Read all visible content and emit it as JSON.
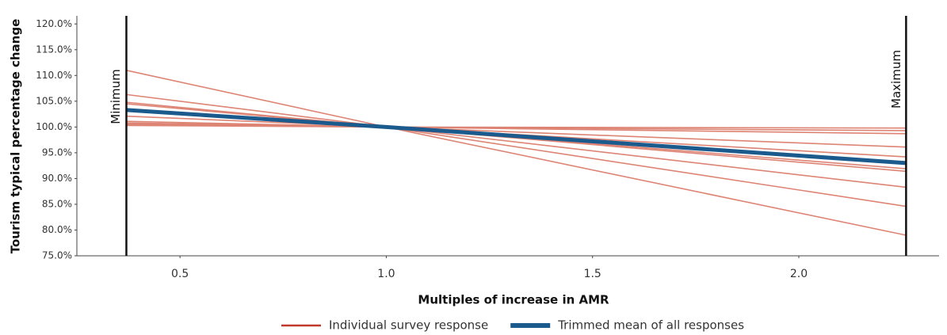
{
  "chart_data": {
    "type": "line",
    "y_label": "Tourism typical percentage change",
    "x_label": "Multiples of increase in AMR",
    "x": [
      0.37,
      1.0,
      2.26
    ],
    "xlim": [
      0.25,
      2.34
    ],
    "xticks": [
      0.5,
      {
        "value": 1,
        "label": "1.0"
      },
      1.5,
      {
        "value": 2,
        "label": "2.0"
      }
    ],
    "ylim": [
      75,
      120.5
    ],
    "yticks": [
      {
        "value": 75,
        "label": "75.0%"
      },
      {
        "value": 80,
        "label": "80.0%"
      },
      {
        "value": 85,
        "label": "85.0%"
      },
      {
        "value": 90,
        "label": "90.0%"
      },
      {
        "value": 95,
        "label": "95.0%"
      },
      {
        "value": 100,
        "label": "100.0%"
      },
      {
        "value": 105,
        "label": "105.0%"
      },
      {
        "value": 110,
        "label": "110.0%"
      },
      {
        "value": 115,
        "label": "115.0%"
      },
      {
        "value": 120,
        "label": "120.0%"
      }
    ],
    "annotations": [
      {
        "text": "Minimum",
        "x": 0.37
      },
      {
        "text": "Maximum",
        "x": 2.26
      }
    ],
    "series": [
      {
        "name": "Individual survey response",
        "color": "#de8474",
        "values": [
          111.0,
          100,
          79.0
        ]
      },
      {
        "name": "Individual survey response",
        "color": "#de8474",
        "values": [
          106.3,
          100,
          84.6
        ]
      },
      {
        "name": "Individual survey response",
        "color": "#de8474",
        "values": [
          104.8,
          100,
          88.3
        ]
      },
      {
        "name": "Individual survey response",
        "color": "#de8474",
        "values": [
          104.5,
          100,
          91.4
        ]
      },
      {
        "name": "Individual survey response",
        "color": "#de8474",
        "values": [
          102.1,
          100,
          91.9
        ]
      },
      {
        "name": "Individual survey response",
        "color": "#de8474",
        "values": [
          101.1,
          100,
          94.2
        ]
      },
      {
        "name": "Individual survey response",
        "color": "#de8474",
        "values": [
          100.6,
          100,
          96.1
        ]
      },
      {
        "name": "Individual survey response",
        "color": "#de8474",
        "values": [
          100.4,
          100,
          98.7
        ]
      },
      {
        "name": "Individual survey response",
        "color": "#de8474",
        "values": [
          100.3,
          100,
          99.3
        ]
      },
      {
        "name": "Individual survey response",
        "color": "#de8474",
        "values": [
          100.8,
          100,
          99.8
        ]
      },
      {
        "name": "Trimmed mean of all responses",
        "color": "#1b5a8c",
        "values": [
          103.3,
          100,
          93.0
        ]
      }
    ]
  }
}
